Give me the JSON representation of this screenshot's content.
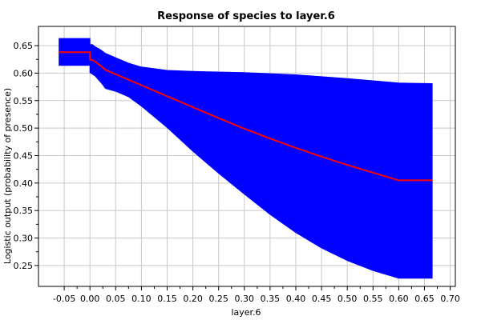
{
  "chart_data": {
    "type": "area",
    "title": "Response of species to layer.6",
    "xlabel": "layer.6",
    "ylabel": "Logistic output (probability of presence)",
    "xlim": [
      -0.1,
      0.71
    ],
    "ylim": [
      0.212,
      0.685
    ],
    "xticks": [
      -0.05,
      0.0,
      0.05,
      0.1,
      0.15,
      0.2,
      0.25,
      0.3,
      0.35,
      0.4,
      0.45,
      0.5,
      0.55,
      0.6,
      0.65,
      0.7
    ],
    "xtick_labels": [
      "-0.05",
      "0.00",
      "0.05",
      "0.10",
      "0.15",
      "0.20",
      "0.25",
      "0.30",
      "0.35",
      "0.40",
      "0.45",
      "0.50",
      "0.55",
      "0.60",
      "0.65",
      "0.70"
    ],
    "yticks": [
      0.25,
      0.3,
      0.35,
      0.4,
      0.45,
      0.5,
      0.55,
      0.6,
      0.65
    ],
    "ytick_labels": [
      "0.25",
      "0.30",
      "0.35",
      "0.40",
      "0.45",
      "0.50",
      "0.55",
      "0.60",
      "0.65"
    ],
    "grid": true,
    "colors": {
      "band": "#0000ff",
      "line": "#ff0000",
      "grid": "#c8c8c8"
    },
    "upper": [
      [
        -0.06,
        0.663
      ],
      [
        0.0,
        0.663
      ],
      [
        0.0,
        0.652
      ],
      [
        0.005,
        0.652
      ],
      [
        0.01,
        0.648
      ],
      [
        0.02,
        0.643
      ],
      [
        0.03,
        0.636
      ],
      [
        0.05,
        0.628
      ],
      [
        0.075,
        0.618
      ],
      [
        0.1,
        0.611
      ],
      [
        0.15,
        0.605
      ],
      [
        0.2,
        0.603
      ],
      [
        0.3,
        0.601
      ],
      [
        0.4,
        0.597
      ],
      [
        0.5,
        0.59
      ],
      [
        0.6,
        0.582
      ],
      [
        0.665,
        0.581
      ]
    ],
    "lower": [
      [
        -0.06,
        0.614
      ],
      [
        0.0,
        0.614
      ],
      [
        0.0,
        0.601
      ],
      [
        0.01,
        0.595
      ],
      [
        0.025,
        0.579
      ],
      [
        0.03,
        0.572
      ],
      [
        0.05,
        0.567
      ],
      [
        0.075,
        0.557
      ],
      [
        0.1,
        0.54
      ],
      [
        0.15,
        0.501
      ],
      [
        0.2,
        0.458
      ],
      [
        0.25,
        0.418
      ],
      [
        0.3,
        0.38
      ],
      [
        0.35,
        0.343
      ],
      [
        0.4,
        0.31
      ],
      [
        0.45,
        0.282
      ],
      [
        0.5,
        0.259
      ],
      [
        0.55,
        0.241
      ],
      [
        0.6,
        0.227
      ],
      [
        0.665,
        0.227
      ]
    ],
    "mean": [
      [
        -0.06,
        0.638
      ],
      [
        0.0,
        0.638
      ],
      [
        0.0,
        0.624
      ],
      [
        0.005,
        0.624
      ],
      [
        0.01,
        0.621
      ],
      [
        0.02,
        0.614
      ],
      [
        0.03,
        0.606
      ],
      [
        0.05,
        0.598
      ],
      [
        0.1,
        0.578
      ],
      [
        0.15,
        0.558
      ],
      [
        0.2,
        0.538
      ],
      [
        0.25,
        0.518
      ],
      [
        0.3,
        0.499
      ],
      [
        0.35,
        0.481
      ],
      [
        0.4,
        0.464
      ],
      [
        0.45,
        0.448
      ],
      [
        0.5,
        0.433
      ],
      [
        0.55,
        0.419
      ],
      [
        0.6,
        0.405
      ],
      [
        0.665,
        0.405
      ]
    ]
  }
}
